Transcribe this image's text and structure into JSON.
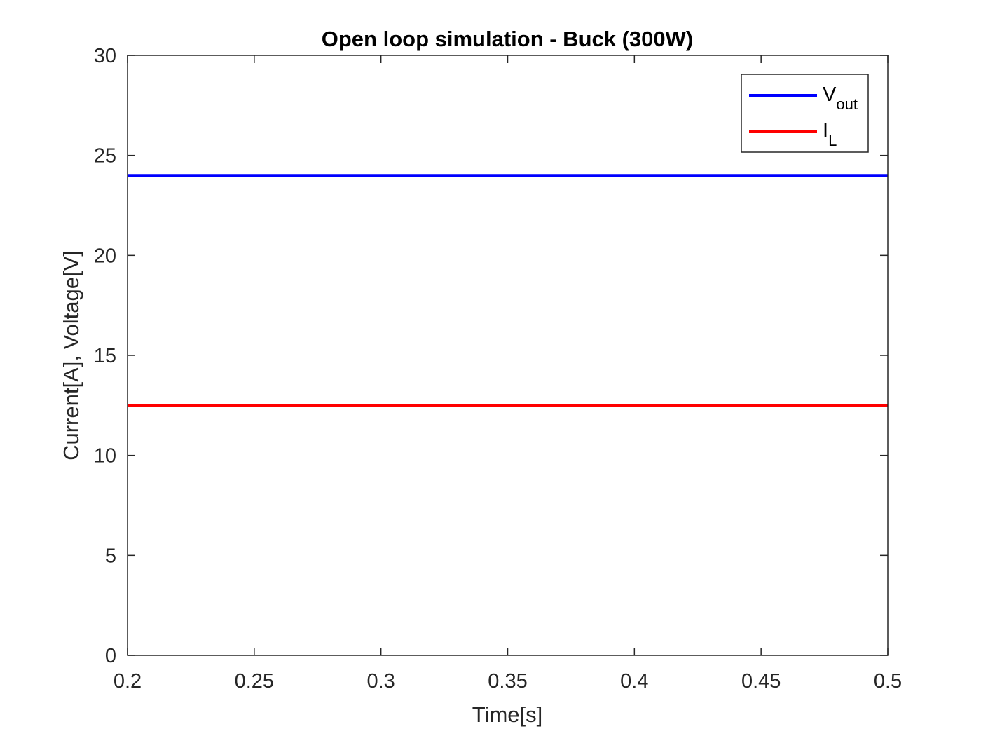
{
  "chart_data": {
    "type": "line",
    "title": "Open loop simulation - Buck (300W)",
    "xlabel": "Time[s]",
    "ylabel": "Current[A], Voltage[V]",
    "xlim": [
      0.2,
      0.5
    ],
    "ylim": [
      0,
      30
    ],
    "xticks": [
      0.2,
      0.25,
      0.3,
      0.35,
      0.4,
      0.45,
      0.5
    ],
    "xtick_labels": [
      "0.2",
      "0.25",
      "0.3",
      "0.35",
      "0.4",
      "0.45",
      "0.5"
    ],
    "yticks": [
      0,
      5,
      10,
      15,
      20,
      25,
      30
    ],
    "ytick_labels": [
      "0",
      "5",
      "10",
      "15",
      "20",
      "25",
      "30"
    ],
    "grid": false,
    "legend_position": "top-right",
    "series": [
      {
        "name": "V",
        "subscript": "out",
        "color": "#0000ff",
        "x": [
          0.2,
          0.5
        ],
        "values": [
          24.0,
          24.0
        ]
      },
      {
        "name": "I",
        "subscript": "L",
        "color": "#ff0000",
        "x": [
          0.2,
          0.5
        ],
        "values": [
          12.5,
          12.5
        ]
      }
    ]
  }
}
